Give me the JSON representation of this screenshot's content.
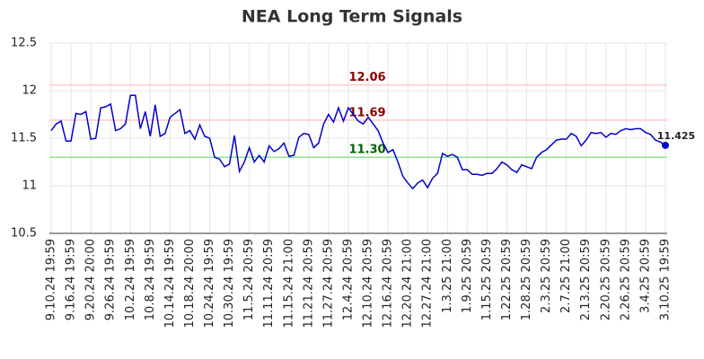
{
  "chart_data": {
    "type": "line",
    "title": "NEA Long Term Signals",
    "categories": [
      "9.10.24 19:59",
      null,
      null,
      null,
      "9.16.24 19:59",
      null,
      null,
      null,
      "9.20.24 20:00",
      null,
      null,
      null,
      "9.26.24 19:59",
      null,
      null,
      null,
      "10.2.24 19:59",
      null,
      null,
      null,
      "10.8.24 19:59",
      null,
      null,
      null,
      "10.14.24 19:59",
      null,
      null,
      null,
      "10.18.24 20:00",
      null,
      null,
      null,
      "10.24.24 19:59",
      null,
      null,
      null,
      "10.30.24 19:59",
      null,
      null,
      null,
      "11.5.24 20:59",
      null,
      null,
      null,
      "11.11.24 20:59",
      null,
      null,
      null,
      "11.15.24 21:00",
      null,
      null,
      null,
      "11.21.24 20:59",
      null,
      null,
      null,
      "11.27.24 20:59",
      null,
      null,
      null,
      "12.4.24 20:59",
      null,
      null,
      null,
      "12.10.24 20:59",
      null,
      null,
      null,
      "12.16.24 20:59",
      null,
      null,
      null,
      "12.20.24 21:00",
      null,
      null,
      null,
      "12.27.24 21:00",
      null,
      null,
      null,
      "1.3.25 21:00",
      null,
      null,
      null,
      "1.9.25 20:59",
      null,
      null,
      null,
      "1.15.25 20:59",
      null,
      null,
      null,
      "1.22.25 20:59",
      null,
      null,
      null,
      "1.28.25 20:59",
      null,
      null,
      null,
      "2.3.25 20:59",
      null,
      null,
      null,
      "2.7.25 21:00",
      null,
      null,
      null,
      "2.13.25 20:59",
      null,
      null,
      null,
      "2.20.25 20:59",
      null,
      null,
      null,
      "2.26.25 20:59",
      null,
      null,
      null,
      "3.4.25 20:59",
      null,
      null,
      null,
      "3.10.25 19:59"
    ],
    "series": [
      {
        "name": "NEA",
        "color": "#0000cc",
        "values": [
          11.58,
          11.65,
          11.68,
          11.47,
          11.47,
          11.76,
          11.75,
          11.78,
          11.49,
          11.5,
          11.82,
          11.83,
          11.86,
          11.58,
          11.6,
          11.65,
          11.95,
          11.95,
          11.6,
          11.78,
          11.52,
          11.85,
          11.52,
          11.55,
          11.72,
          11.76,
          11.8,
          11.55,
          11.58,
          11.49,
          11.64,
          11.52,
          11.5,
          11.3,
          11.28,
          11.2,
          11.23,
          11.53,
          11.15,
          11.25,
          11.4,
          11.25,
          11.32,
          11.25,
          11.42,
          11.36,
          11.39,
          11.45,
          11.31,
          11.32,
          11.51,
          11.55,
          11.54,
          11.4,
          11.45,
          11.65,
          11.75,
          11.67,
          11.82,
          11.68,
          11.82,
          11.75,
          11.68,
          11.65,
          11.72,
          11.65,
          11.58,
          11.45,
          11.35,
          11.38,
          11.25,
          11.1,
          11.03,
          10.97,
          11.03,
          11.06,
          10.98,
          11.08,
          11.13,
          11.34,
          11.31,
          11.33,
          11.3,
          11.17,
          11.17,
          11.12,
          11.12,
          11.11,
          11.13,
          11.13,
          11.18,
          11.25,
          11.22,
          11.17,
          11.14,
          11.22,
          11.2,
          11.18,
          11.3,
          11.35,
          11.38,
          11.43,
          11.48,
          11.49,
          11.49,
          11.55,
          11.52,
          11.42,
          11.48,
          11.56,
          11.55,
          11.56,
          11.51,
          11.55,
          11.54,
          11.58,
          11.6,
          11.59,
          11.6,
          11.6,
          11.56,
          11.54,
          11.48,
          11.46,
          11.425
        ]
      }
    ],
    "hlines": [
      {
        "value": 12.06,
        "color": "#ffc8c8",
        "label_color": "#8b0000"
      },
      {
        "value": 11.69,
        "color": "#ffc8c8",
        "label_color": "#8b0000"
      },
      {
        "value": {
          "value": 11.3,
          "label": "11.30"
        },
        "color": "#90e090",
        "label_color": "#006400"
      }
    ],
    "ylim": [
      10.5,
      12.5
    ],
    "yticks": [
      10.5,
      11,
      11.5,
      12,
      12.5
    ],
    "grid": true
  }
}
